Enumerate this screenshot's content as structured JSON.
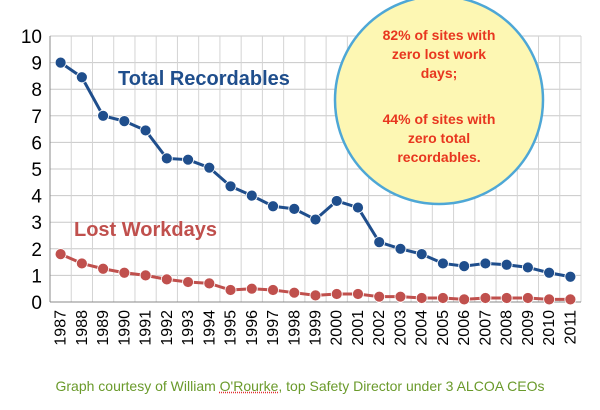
{
  "chart_data": {
    "type": "line",
    "categories": [
      "1987",
      "1988",
      "1989",
      "1990",
      "1991",
      "1992",
      "1993",
      "1994",
      "1995",
      "1996",
      "1997",
      "1998",
      "1999",
      "2000",
      "2001",
      "2002",
      "2003",
      "2004",
      "2005",
      "2006",
      "2007",
      "2008",
      "2009",
      "2010",
      "2011"
    ],
    "series": [
      {
        "name": "Total Recordables",
        "color": "#1f4e8c",
        "values": [
          9.0,
          8.45,
          7.0,
          6.8,
          6.45,
          5.4,
          5.35,
          5.05,
          4.35,
          4.0,
          3.6,
          3.5,
          3.1,
          3.8,
          3.55,
          2.25,
          2.0,
          1.8,
          1.45,
          1.35,
          1.45,
          1.4,
          1.3,
          1.1,
          0.95
        ]
      },
      {
        "name": "Lost Workdays",
        "color": "#c0504d",
        "values": [
          1.8,
          1.45,
          1.25,
          1.1,
          1.0,
          0.85,
          0.75,
          0.7,
          0.45,
          0.5,
          0.45,
          0.35,
          0.25,
          0.3,
          0.3,
          0.2,
          0.2,
          0.15,
          0.15,
          0.1,
          0.15,
          0.15,
          0.15,
          0.1,
          0.1
        ]
      }
    ],
    "yticks": [
      "0",
      "1",
      "2",
      "3",
      "4",
      "5",
      "6",
      "7",
      "8",
      "9",
      "10"
    ],
    "ylim": [
      0,
      10
    ],
    "grid": true,
    "title": "",
    "xlabel": "",
    "ylabel": ""
  },
  "callout": {
    "line1": "82% of sites with",
    "line2": "zero lost work",
    "line3": "days;",
    "line4": "44% of sites with",
    "line5": "zero total",
    "line6": "recordables."
  },
  "credit": {
    "before": "Graph courtesy of William ",
    "name": "O'Rourke",
    "after": ", top Safety Director under 3 ALCOA CEOs"
  }
}
